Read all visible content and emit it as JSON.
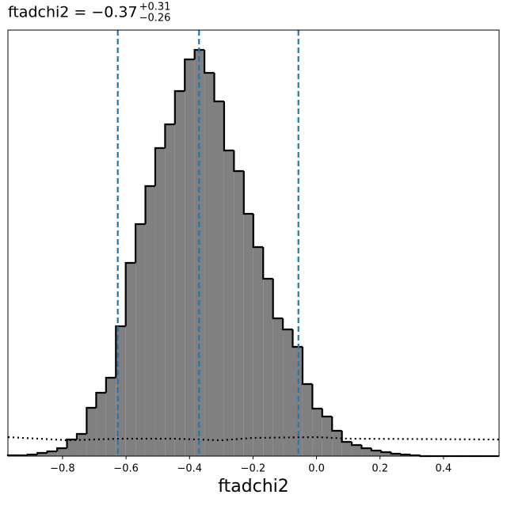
{
  "chart_data": {
    "type": "histogram",
    "title": "ftadchi2 = −0.37",
    "title_upper": "+0.31",
    "title_lower": "−0.26",
    "xlabel": "ftadchi2",
    "bins": [
      -0.972,
      -0.941,
      -0.91,
      -0.879,
      -0.848,
      -0.817,
      -0.786,
      -0.755,
      -0.724,
      -0.694,
      -0.663,
      -0.632,
      -0.601,
      -0.57,
      -0.539,
      -0.508,
      -0.477,
      -0.446,
      -0.415,
      -0.384,
      -0.353,
      -0.322,
      -0.291,
      -0.26,
      -0.229,
      -0.199,
      -0.168,
      -0.137,
      -0.106,
      -0.075,
      -0.044,
      -0.013,
      0.018,
      0.049,
      0.08,
      0.111,
      0.142,
      0.173,
      0.204,
      0.235,
      0.266,
      0.296,
      0.327,
      0.358,
      0.389,
      0.42,
      0.451,
      0.482,
      0.513,
      0.544,
      0.575
    ],
    "values": [
      1,
      1,
      2,
      4,
      6,
      10,
      21,
      28,
      61,
      80,
      99,
      164,
      244,
      293,
      341,
      389,
      419,
      461,
      501,
      513,
      484,
      448,
      386,
      360,
      306,
      264,
      224,
      174,
      160,
      138,
      91,
      60,
      50,
      32,
      18,
      14,
      10,
      7,
      5,
      3,
      2,
      1,
      0,
      0,
      0,
      0,
      0,
      0,
      0,
      0
    ],
    "color": "#808080",
    "edgecolor": "#000000",
    "xlim": [
      -0.972,
      0.575
    ],
    "ylim": [
      0,
      538
    ],
    "xticks": [
      {
        "value": -0.8,
        "label": "−0.8"
      },
      {
        "value": -0.6,
        "label": "−0.6"
      },
      {
        "value": -0.4,
        "label": "−0.4"
      },
      {
        "value": -0.2,
        "label": "−0.2"
      },
      {
        "value": 0.0,
        "label": "0.0"
      },
      0.2,
      0.4
    ],
    "vlines": [
      -0.626,
      -0.37,
      -0.057
    ],
    "vline_color": "#1f77b4",
    "prior_line": {
      "x": [
        -0.972,
        -0.78,
        -0.62,
        -0.45,
        -0.3,
        -0.2,
        0.0,
        0.1,
        0.575
      ],
      "values": [
        24,
        20,
        22,
        22,
        20,
        23,
        24,
        22,
        21
      ],
      "color": "#000000"
    }
  }
}
